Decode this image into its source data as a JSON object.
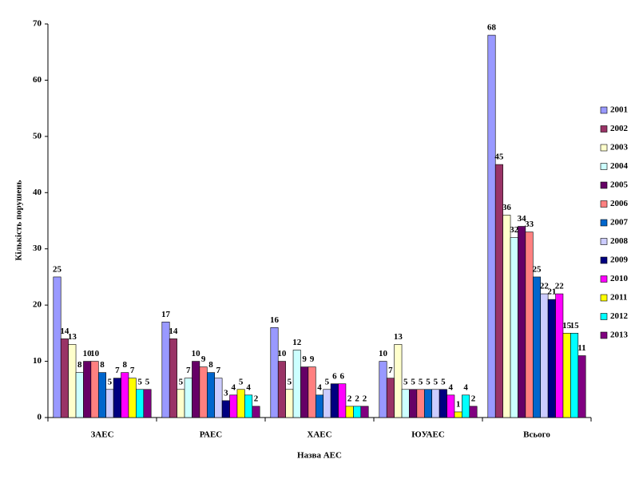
{
  "chart_data": {
    "type": "bar",
    "y_label": "Кількість порушень",
    "x_label": "Назва АЕС",
    "categories": [
      "ЗАЕС",
      "РАЕС",
      "ХАЕС",
      "ЮУАЕС",
      "Всього"
    ],
    "series": [
      {
        "name": "2001",
        "color": "#9999ff",
        "values": [
          25,
          17,
          16,
          10,
          68
        ]
      },
      {
        "name": "2002",
        "color": "#993366",
        "values": [
          14,
          14,
          10,
          7,
          45
        ]
      },
      {
        "name": "2003",
        "color": "#ffffcc",
        "values": [
          13,
          5,
          5,
          13,
          36
        ]
      },
      {
        "name": "2004",
        "color": "#ccffff",
        "values": [
          8,
          7,
          12,
          5,
          32
        ]
      },
      {
        "name": "2005",
        "color": "#660066",
        "values": [
          10,
          10,
          9,
          5,
          34
        ]
      },
      {
        "name": "2006",
        "color": "#ff8080",
        "values": [
          10,
          9,
          9,
          5,
          33
        ]
      },
      {
        "name": "2007",
        "color": "#0066cc",
        "values": [
          8,
          8,
          4,
          5,
          25
        ]
      },
      {
        "name": "2008",
        "color": "#ccccff",
        "values": [
          5,
          7,
          5,
          5,
          22
        ]
      },
      {
        "name": "2009",
        "color": "#000080",
        "values": [
          7,
          3,
          6,
          5,
          21
        ]
      },
      {
        "name": "2010",
        "color": "#ff00ff",
        "values": [
          8,
          4,
          6,
          4,
          22
        ]
      },
      {
        "name": "2011",
        "color": "#ffff00",
        "values": [
          7,
          5,
          2,
          1,
          15
        ]
      },
      {
        "name": "2012",
        "color": "#00ffff",
        "values": [
          5,
          4,
          2,
          4,
          15
        ]
      },
      {
        "name": "2013",
        "color": "#800080",
        "values": [
          5,
          2,
          2,
          2,
          11
        ]
      }
    ],
    "ylim": [
      0,
      70
    ],
    "yticks": [
      0,
      10,
      20,
      30,
      40,
      50,
      60,
      70
    ],
    "grid": false,
    "legend": "right"
  }
}
